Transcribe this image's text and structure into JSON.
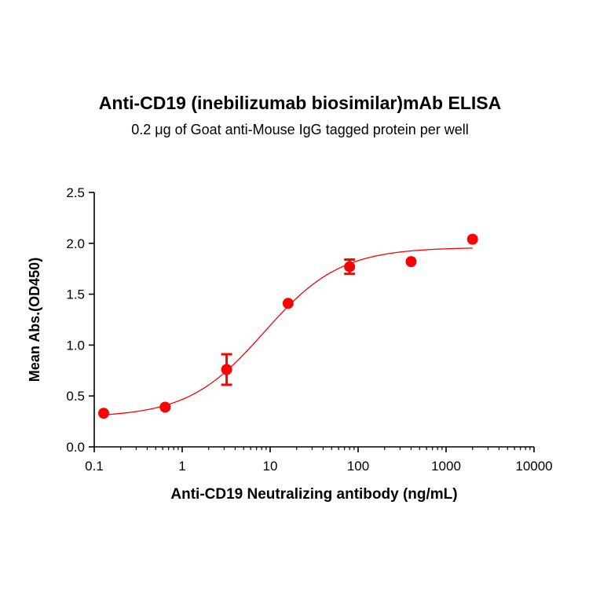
{
  "chart_data": {
    "type": "scatter",
    "title": "Anti-CD19 (inebilizumab biosimilar)mAb ELISA",
    "subtitle": "0.2 μg of Goat anti-Mouse IgG tagged protein per well",
    "xlabel": "Anti-CD19 Neutralizing antibody (ng/mL)",
    "ylabel": "Mean Abs.(OD450)",
    "xscale": "log",
    "xlim": [
      0.1,
      10000
    ],
    "ylim": [
      0,
      2.5
    ],
    "xticks": [
      "0.1",
      "1",
      "10",
      "100",
      "1000",
      "10000"
    ],
    "yticks": [
      "0.0",
      "0.5",
      "1.0",
      "1.5",
      "2.0",
      "2.5"
    ],
    "grid": false,
    "color": "#ff0000",
    "points": [
      {
        "x": 0.128,
        "y": 0.33,
        "err": 0.0
      },
      {
        "x": 0.64,
        "y": 0.39,
        "err": 0.0
      },
      {
        "x": 3.2,
        "y": 0.76,
        "err": 0.15
      },
      {
        "x": 16,
        "y": 1.41,
        "err": 0.0
      },
      {
        "x": 80,
        "y": 1.77,
        "err": 0.07
      },
      {
        "x": 400,
        "y": 1.82,
        "err": 0.0
      },
      {
        "x": 2000,
        "y": 2.04,
        "err": 0.0
      }
    ],
    "fit": {
      "type": "4PL",
      "bottom": 0.29,
      "top": 1.96,
      "ec50": 8.5,
      "hill": 1.0
    }
  }
}
